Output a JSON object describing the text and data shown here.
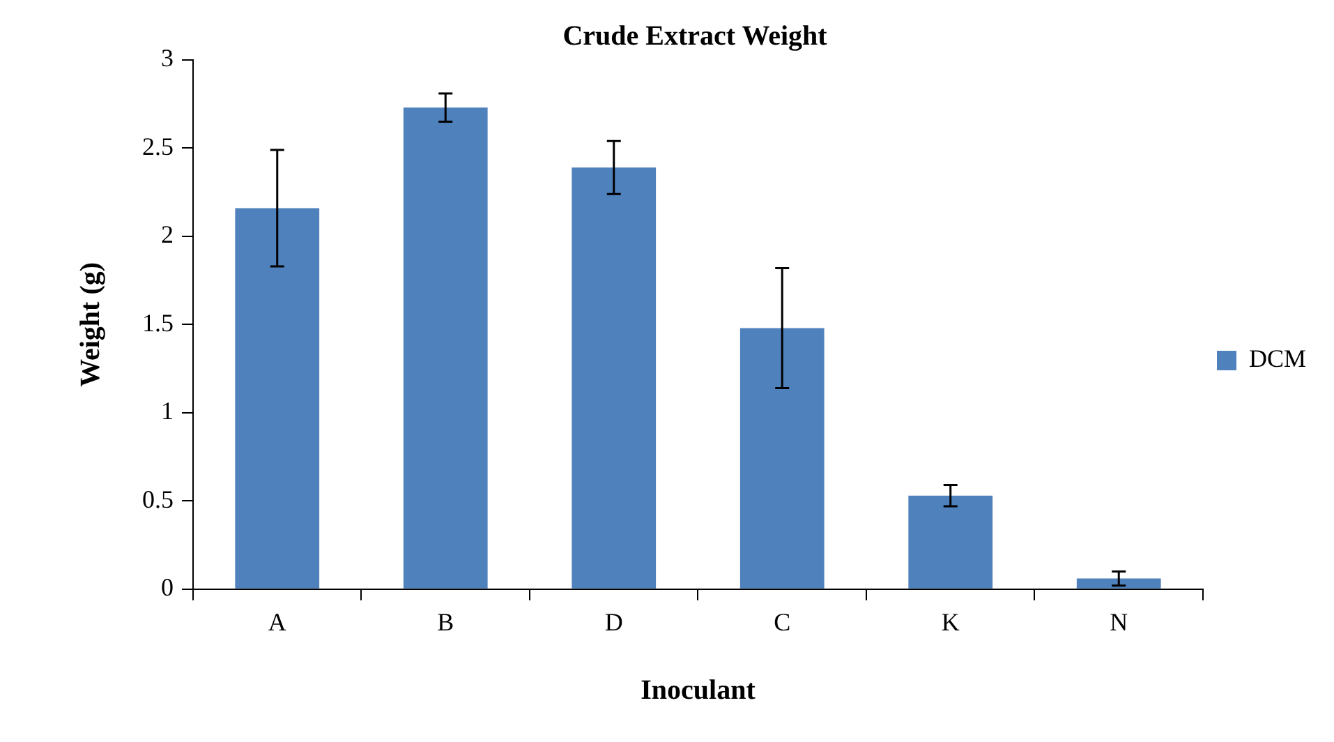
{
  "chart_data": {
    "type": "bar",
    "title": "Crude Extract Weight",
    "xlabel": "Inoculant",
    "ylabel": "Weight (g)",
    "categories": [
      "A",
      "B",
      "D",
      "C",
      "K",
      "N"
    ],
    "series": [
      {
        "name": "DCM",
        "color": "#4f81bd",
        "values": [
          2.16,
          2.73,
          2.39,
          1.48,
          0.53,
          0.06
        ],
        "errors": [
          0.33,
          0.08,
          0.15,
          0.34,
          0.06,
          0.04
        ]
      }
    ],
    "ylim": [
      0,
      3
    ],
    "yticks": [
      0,
      0.5,
      1,
      1.5,
      2,
      2.5,
      3
    ],
    "grid": false,
    "legend": "right"
  }
}
